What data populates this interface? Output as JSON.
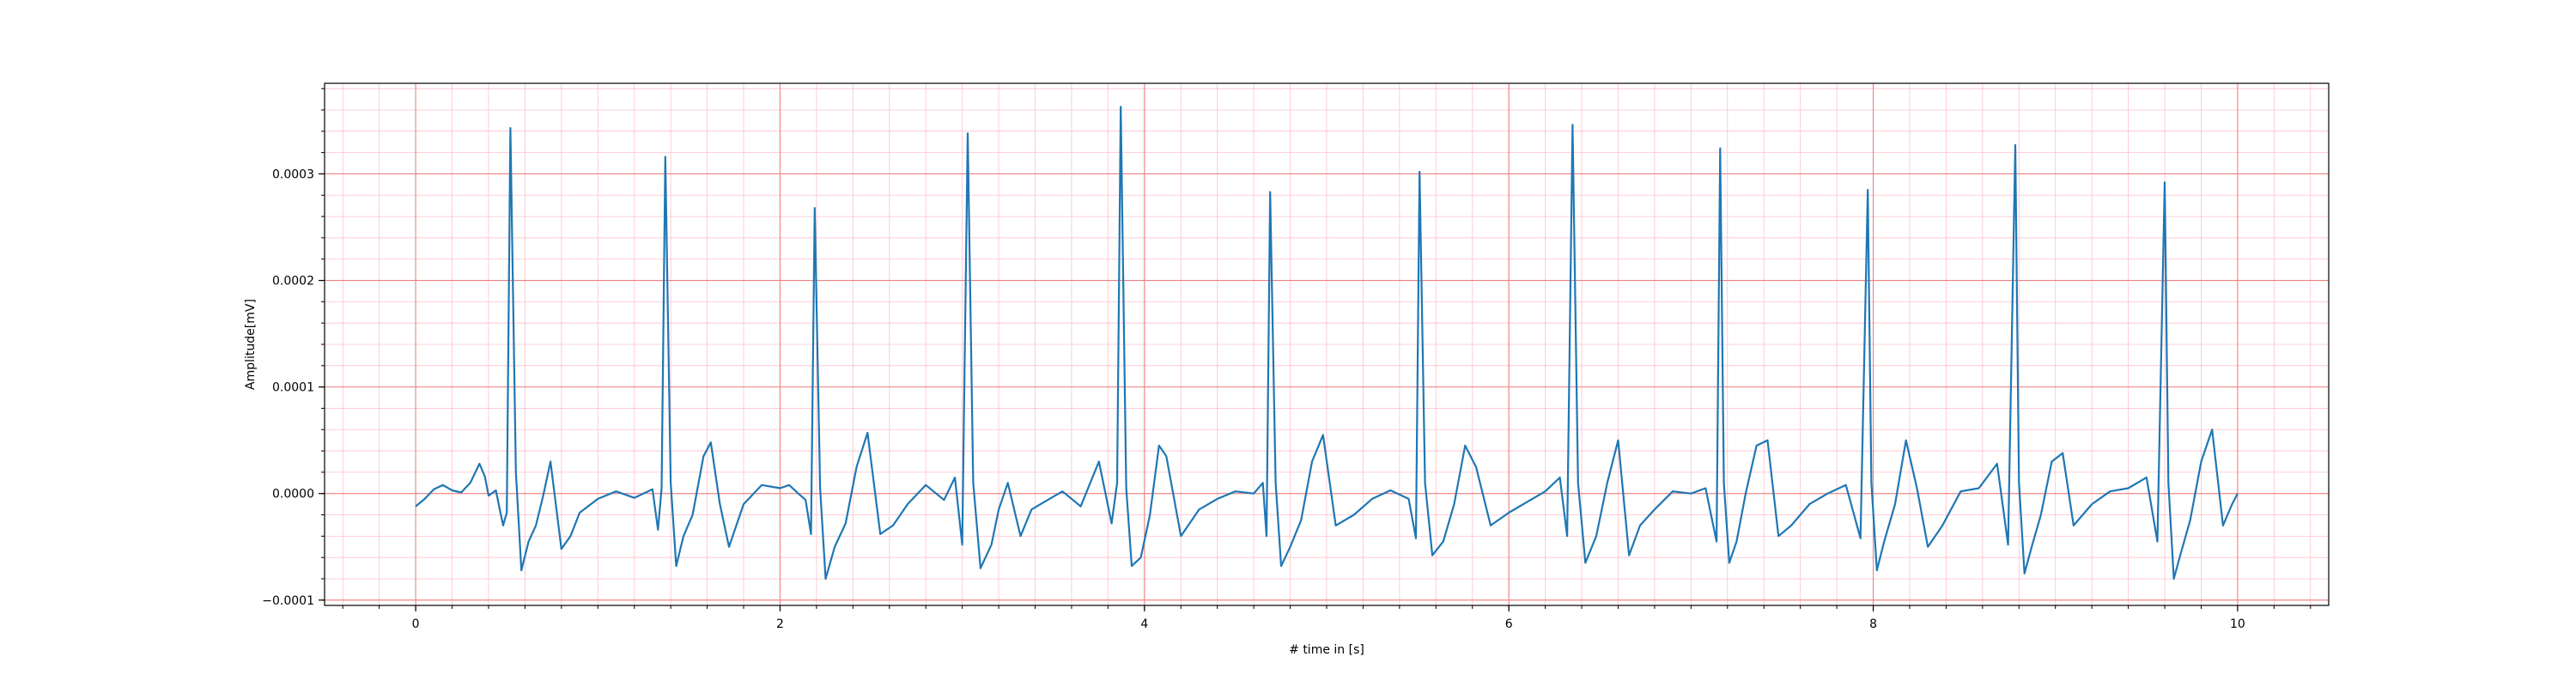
{
  "chart_data": {
    "type": "line",
    "title": "",
    "xlabel": "# time in [s]",
    "ylabel": "Amplitude[mV]",
    "xlim": [
      -0.5,
      10.5
    ],
    "ylim": [
      -0.000105,
      0.000385
    ],
    "x_ticks": [
      0,
      2,
      4,
      6,
      8,
      10
    ],
    "x_tick_labels": [
      "0",
      "2",
      "4",
      "6",
      "8",
      "10"
    ],
    "y_ticks": [
      -0.0001,
      0.0,
      0.0001,
      0.0002,
      0.0003
    ],
    "y_tick_labels": [
      "−0.0001",
      "0.0000",
      "0.0001",
      "0.0002",
      "0.0003"
    ],
    "grid": {
      "major": true,
      "minor": true
    },
    "colors": {
      "line": "#1f77b4",
      "major_grid": "#f08080",
      "minor_grid": "#ffc0cb"
    },
    "r_peaks": [
      {
        "t": 0.52,
        "r": 0.000343
      },
      {
        "t": 1.37,
        "r": 0.000316
      },
      {
        "t": 2.19,
        "r": 0.000268
      },
      {
        "t": 3.03,
        "r": 0.000338
      },
      {
        "t": 3.87,
        "r": 0.000363
      },
      {
        "t": 4.69,
        "r": 0.000283
      },
      {
        "t": 5.51,
        "r": 0.000302
      },
      {
        "t": 6.35,
        "r": 0.000346
      },
      {
        "t": 7.18,
        "r": 0.000324
      },
      {
        "t": 7.99,
        "r": 0.000285
      },
      {
        "t": 8.8,
        "r": 0.000327
      },
      {
        "t": 9.62,
        "r": 0.000292
      }
    ],
    "series": [
      {
        "values_description": "single ECG trace",
        "x": [
          0.0,
          0.05,
          0.1,
          0.15,
          0.2,
          0.25,
          0.3,
          0.35,
          0.38,
          0.4,
          0.44,
          0.48,
          0.5,
          0.52,
          0.55,
          0.58,
          0.62,
          0.66,
          0.7,
          0.74,
          0.8,
          0.85,
          0.9,
          1.0,
          1.1,
          1.2,
          1.3,
          1.33,
          1.35,
          1.37,
          1.4,
          1.43,
          1.47,
          1.52,
          1.58,
          1.62,
          1.67,
          1.72,
          1.8,
          1.9,
          2.0,
          2.05,
          2.1,
          2.14,
          2.17,
          2.19,
          2.22,
          2.25,
          2.3,
          2.36,
          2.42,
          2.48,
          2.55,
          2.62,
          2.7,
          2.8,
          2.9,
          2.96,
          3.0,
          3.03,
          3.06,
          3.1,
          3.16,
          3.2,
          3.25,
          3.32,
          3.38,
          3.45,
          3.55,
          3.65,
          3.75,
          3.82,
          3.85,
          3.87,
          3.9,
          3.93,
          3.98,
          4.03,
          4.08,
          4.12,
          4.2,
          4.3,
          4.4,
          4.5,
          4.6,
          4.65,
          4.67,
          4.69,
          4.72,
          4.75,
          4.8,
          4.86,
          4.92,
          4.98,
          5.05,
          5.15,
          5.25,
          5.35,
          5.45,
          5.49,
          5.51,
          5.54,
          5.58,
          5.64,
          5.7,
          5.76,
          5.82,
          5.9,
          6.0,
          6.1,
          6.2,
          6.28,
          6.32,
          6.35,
          6.38,
          6.42,
          6.48,
          6.54,
          6.6,
          6.66,
          6.72,
          6.8,
          6.9,
          7.0,
          7.08,
          7.14,
          7.16,
          7.18,
          7.21,
          7.25,
          7.3,
          7.36,
          7.42,
          7.48,
          7.55,
          7.65,
          7.75,
          7.85,
          7.93,
          7.97,
          7.99,
          8.02,
          8.06,
          8.12,
          8.18,
          8.24,
          8.3,
          8.38,
          8.48,
          8.58,
          8.68,
          8.74,
          8.78,
          8.8,
          8.83,
          8.87,
          8.92,
          8.98,
          9.04,
          9.1,
          9.2,
          9.3,
          9.4,
          9.5,
          9.56,
          9.6,
          9.62,
          9.65,
          9.69,
          9.74,
          9.8,
          9.86,
          9.92,
          9.97,
          10.0
        ],
        "y": [
          -1.2e-05,
          -5e-06,
          4e-06,
          8e-06,
          3e-06,
          1e-06,
          1e-05,
          2.8e-05,
          1.6e-05,
          -2e-06,
          3e-06,
          -3e-05,
          -1.8e-05,
          0.000343,
          2e-05,
          -7.2e-05,
          -4.5e-05,
          -3e-05,
          -2e-06,
          3e-05,
          -5.2e-05,
          -4e-05,
          -1.8e-05,
          -5e-06,
          2e-06,
          -4e-06,
          4e-06,
          -3.4e-05,
          5e-06,
          0.000316,
          1e-05,
          -6.8e-05,
          -4e-05,
          -2e-05,
          3.5e-05,
          4.8e-05,
          -1e-05,
          -5e-05,
          -1e-05,
          8e-06,
          5e-06,
          8e-06,
          0.0,
          -6e-06,
          -3.8e-05,
          0.000268,
          5e-06,
          -8e-05,
          -5e-05,
          -2.8e-05,
          2.5e-05,
          5.7e-05,
          -3.8e-05,
          -3e-05,
          -1e-05,
          8e-06,
          -6e-06,
          1.5e-05,
          -4.8e-05,
          0.000338,
          1e-05,
          -7e-05,
          -4.8e-05,
          -1.5e-05,
          1e-05,
          -4e-05,
          -1.5e-05,
          -8e-06,
          2e-06,
          -1.2e-05,
          3e-05,
          -2.8e-05,
          1e-05,
          0.000363,
          5e-06,
          -6.8e-05,
          -6e-05,
          -2e-05,
          4.5e-05,
          3.5e-05,
          -4e-05,
          -1.5e-05,
          -5e-06,
          2e-06,
          0.0,
          1e-05,
          -4e-05,
          0.000283,
          1e-05,
          -6.8e-05,
          -5e-05,
          -2.5e-05,
          3e-05,
          5.5e-05,
          -3e-05,
          -2e-05,
          -5e-06,
          3e-06,
          -5e-06,
          -4.2e-05,
          0.000302,
          1e-05,
          -5.8e-05,
          -4.5e-05,
          -1e-05,
          4.5e-05,
          2.5e-05,
          -3e-05,
          -1.8e-05,
          -8e-06,
          2e-06,
          1.5e-05,
          -4e-05,
          0.000346,
          1e-05,
          -6.5e-05,
          -4e-05,
          1e-05,
          5e-05,
          -5.8e-05,
          -3e-05,
          -1.5e-05,
          2e-06,
          0.0,
          5e-06,
          -4.5e-05,
          0.000324,
          1e-05,
          -6.5e-05,
          -4.5e-05,
          0.0,
          4.5e-05,
          5e-05,
          -4e-05,
          -3e-05,
          -1e-05,
          0.0,
          8e-06,
          -4.2e-05,
          0.000285,
          1e-05,
          -7.2e-05,
          -4.5e-05,
          -1e-05,
          5e-05,
          5e-06,
          -5e-05,
          -3e-05,
          2e-06,
          5e-06,
          2.8e-05,
          -4.8e-05,
          0.000327,
          1e-05,
          -7.5e-05,
          -5e-05,
          -2e-05,
          3e-05,
          3.8e-05,
          -3e-05,
          -1e-05,
          2e-06,
          5e-06,
          1.5e-05,
          -4.5e-05,
          0.000292,
          1e-05,
          -8e-05,
          -5.5e-05,
          -2.5e-05,
          3e-05,
          6e-05,
          -3e-05,
          -1e-05,
          0.0
        ]
      }
    ]
  }
}
